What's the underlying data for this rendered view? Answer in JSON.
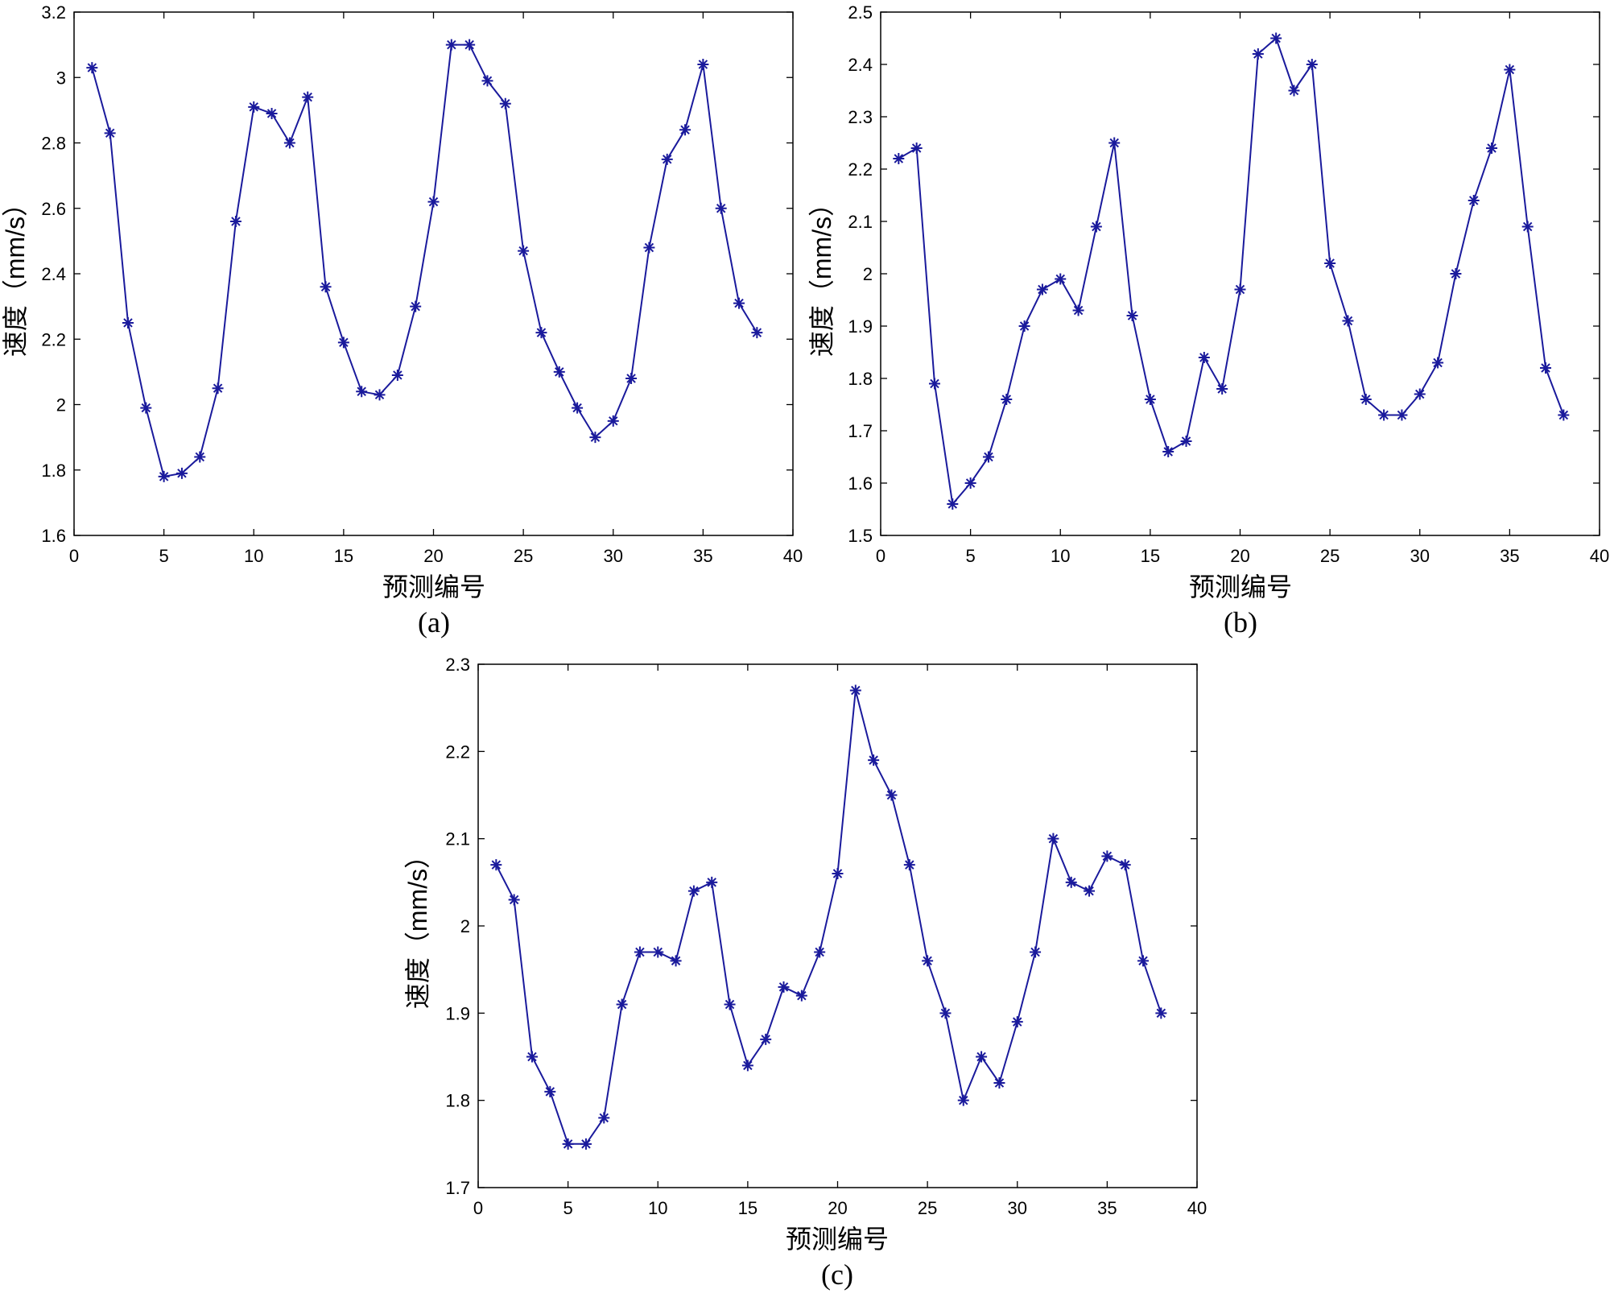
{
  "colors": {
    "series": "#1a1a9c",
    "axes": "#000000",
    "background": "#ffffff"
  },
  "chart_data": [
    {
      "type": "line",
      "caption": "(a)",
      "xlabel": "预测编号",
      "ylabel": "速度（mm/s）",
      "xlim": [
        0,
        40
      ],
      "ylim": [
        1.6,
        3.2
      ],
      "xticks": [
        "0",
        "5",
        "10",
        "15",
        "20",
        "25",
        "30",
        "35",
        "40"
      ],
      "yticks": [
        "1.6",
        "1.8",
        "2",
        "2.2",
        "2.4",
        "2.6",
        "2.8",
        "3",
        "3.2"
      ],
      "marker": "asterisk",
      "grid": false,
      "x": [
        1,
        2,
        3,
        4,
        5,
        6,
        7,
        8,
        9,
        10,
        11,
        12,
        13,
        14,
        15,
        16,
        17,
        18,
        19,
        20,
        21,
        22,
        23,
        24,
        25,
        26,
        27,
        28,
        29,
        30,
        31,
        32,
        33,
        34,
        35,
        36,
        37,
        38
      ],
      "values": [
        3.03,
        2.83,
        2.25,
        1.99,
        1.78,
        1.79,
        1.84,
        2.05,
        2.56,
        2.91,
        2.89,
        2.8,
        2.94,
        2.36,
        2.19,
        2.04,
        2.03,
        2.09,
        2.3,
        2.62,
        3.1,
        3.1,
        2.99,
        2.92,
        2.47,
        2.22,
        2.1,
        1.99,
        1.9,
        1.95,
        2.08,
        2.48,
        2.75,
        2.84,
        3.04,
        2.6,
        2.31,
        2.22
      ]
    },
    {
      "type": "line",
      "caption": "(b)",
      "xlabel": "预测编号",
      "ylabel": "速度（mm/s）",
      "xlim": [
        0,
        40
      ],
      "ylim": [
        1.5,
        2.5
      ],
      "xticks": [
        "0",
        "5",
        "10",
        "15",
        "20",
        "25",
        "30",
        "35",
        "40"
      ],
      "yticks": [
        "1.5",
        "1.6",
        "1.7",
        "1.8",
        "1.9",
        "2",
        "2.1",
        "2.2",
        "2.3",
        "2.4",
        "2.5"
      ],
      "marker": "asterisk",
      "grid": false,
      "x": [
        1,
        2,
        3,
        4,
        5,
        6,
        7,
        8,
        9,
        10,
        11,
        12,
        13,
        14,
        15,
        16,
        17,
        18,
        19,
        20,
        21,
        22,
        23,
        24,
        25,
        26,
        27,
        28,
        29,
        30,
        31,
        32,
        33,
        34,
        35,
        36,
        37,
        38
      ],
      "values": [
        2.22,
        2.24,
        1.79,
        1.56,
        1.6,
        1.65,
        1.76,
        1.9,
        1.97,
        1.99,
        1.93,
        2.09,
        2.25,
        1.92,
        1.76,
        1.66,
        1.68,
        1.84,
        1.78,
        1.97,
        2.42,
        2.45,
        2.35,
        2.4,
        2.02,
        1.91,
        1.76,
        1.73,
        1.73,
        1.77,
        1.83,
        2.0,
        2.14,
        2.24,
        2.39,
        2.09,
        1.82,
        1.73
      ]
    },
    {
      "type": "line",
      "caption": "(c)",
      "xlabel": "预测编号",
      "ylabel": "速度（mm/s）",
      "xlim": [
        0,
        40
      ],
      "ylim": [
        1.7,
        2.3
      ],
      "xticks": [
        "0",
        "5",
        "10",
        "15",
        "20",
        "25",
        "30",
        "35",
        "40"
      ],
      "yticks": [
        "1.7",
        "1.8",
        "1.9",
        "2",
        "2.1",
        "2.2",
        "2.3"
      ],
      "marker": "asterisk",
      "grid": false,
      "x": [
        1,
        2,
        3,
        4,
        5,
        6,
        7,
        8,
        9,
        10,
        11,
        12,
        13,
        14,
        15,
        16,
        17,
        18,
        19,
        20,
        21,
        22,
        23,
        24,
        25,
        26,
        27,
        28,
        29,
        30,
        31,
        32,
        33,
        34,
        35,
        36,
        37,
        38
      ],
      "values": [
        2.07,
        2.03,
        1.85,
        1.81,
        1.75,
        1.75,
        1.78,
        1.91,
        1.97,
        1.97,
        1.96,
        2.04,
        2.05,
        1.91,
        1.84,
        1.87,
        1.93,
        1.92,
        1.97,
        2.06,
        2.27,
        2.19,
        2.15,
        2.07,
        1.96,
        1.9,
        1.8,
        1.85,
        1.82,
        1.89,
        1.97,
        2.1,
        2.05,
        2.04,
        2.08,
        2.07,
        1.96,
        1.9
      ]
    }
  ]
}
